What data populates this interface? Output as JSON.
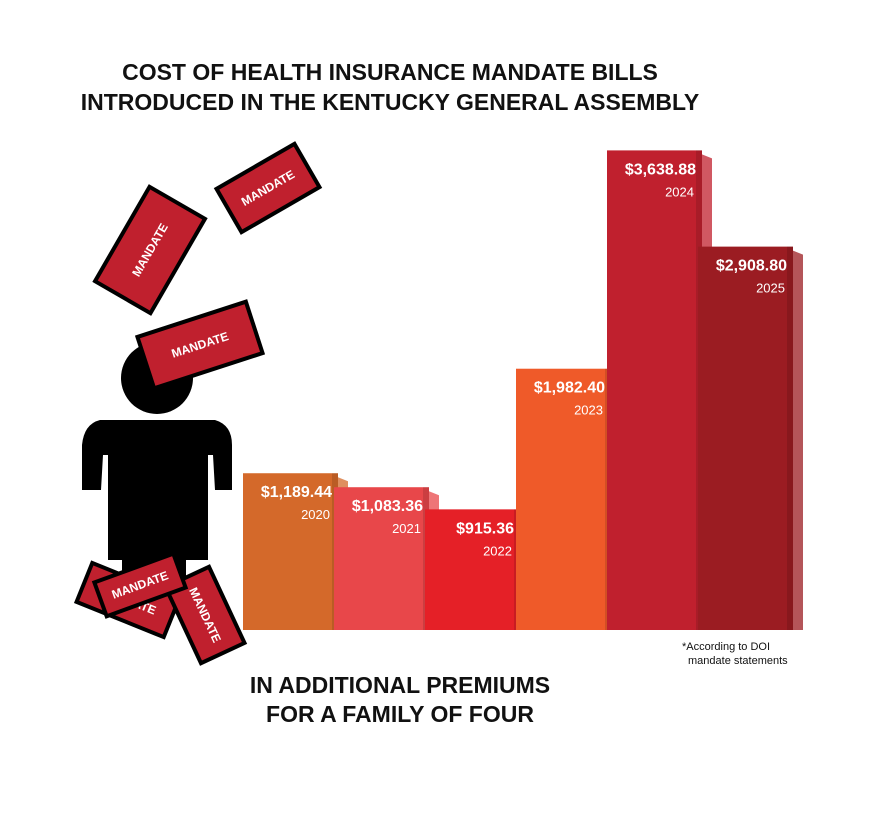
{
  "chart_data": {
    "type": "bar",
    "title": [
      "COST OF HEALTH INSURANCE MANDATE BILLS",
      "INTRODUCED IN THE KENTUCKY GENERAL ASSEMBLY"
    ],
    "subtitle": [
      "IN ADDITIONAL PREMIUMS",
      "FOR A FAMILY OF FOUR"
    ],
    "footnote": [
      "*According to DOI",
      "mandate statements"
    ],
    "decoration_text": "MANDATE",
    "categories": [
      "2020",
      "2021",
      "2022",
      "2023",
      "2024",
      "2025"
    ],
    "values": [
      1189.44,
      1083.36,
      915.36,
      1982.4,
      3638.88,
      2908.8
    ],
    "value_labels": [
      "$1,189.44",
      "$1,083.36",
      "$915.36",
      "$1,982.40",
      "$3,638.88",
      "$2,908.80"
    ],
    "colors": [
      "#d4692a",
      "#e8474a",
      "#e52027",
      "#ef5a29",
      "#c0202e",
      "#9b1c22"
    ]
  }
}
